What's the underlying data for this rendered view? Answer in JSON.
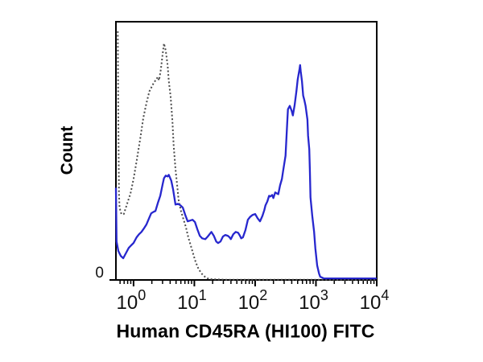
{
  "chart_data": {
    "type": "line",
    "subtype": "flow-cytometry-histogram-overlay",
    "title": "",
    "xlabel": "Human CD45RA (HI100) FITC",
    "ylabel": "Count",
    "x_scale": "log10",
    "x_range_log": [
      -0.29,
      4
    ],
    "grid": false,
    "legend": false,
    "colors": {
      "sample": "#2727ce",
      "control": "#4b4b4b",
      "frame": "#000000",
      "text": "#111111"
    },
    "x_ticks": [
      {
        "log": 0,
        "base": "10",
        "exp": "0"
      },
      {
        "log": 1,
        "base": "10",
        "exp": "1"
      },
      {
        "log": 2,
        "base": "10",
        "exp": "2"
      },
      {
        "log": 3,
        "base": "10",
        "exp": "3"
      },
      {
        "log": 4,
        "base": "10",
        "exp": "4"
      }
    ],
    "y_ticks": [
      {
        "frac": 0,
        "label": "0"
      }
    ],
    "series": [
      {
        "name": "control-dotted",
        "style": "dotted",
        "color_key": "control",
        "points": [
          [
            -0.26,
            0.963
          ],
          [
            -0.25,
            0.615
          ],
          [
            -0.24,
            0.335
          ],
          [
            -0.23,
            0.28
          ],
          [
            -0.2,
            0.255
          ],
          [
            -0.16,
            0.255
          ],
          [
            -0.11,
            0.292
          ],
          [
            -0.05,
            0.335
          ],
          [
            0.0,
            0.391
          ],
          [
            0.05,
            0.46
          ],
          [
            0.11,
            0.547
          ],
          [
            0.16,
            0.627
          ],
          [
            0.21,
            0.683
          ],
          [
            0.26,
            0.73
          ],
          [
            0.32,
            0.758
          ],
          [
            0.37,
            0.776
          ],
          [
            0.4,
            0.786
          ],
          [
            0.42,
            0.773
          ],
          [
            0.45,
            0.817
          ],
          [
            0.48,
            0.879
          ],
          [
            0.5,
            0.916
          ],
          [
            0.53,
            0.888
          ],
          [
            0.56,
            0.832
          ],
          [
            0.58,
            0.77
          ],
          [
            0.61,
            0.708
          ],
          [
            0.64,
            0.615
          ],
          [
            0.66,
            0.522
          ],
          [
            0.69,
            0.429
          ],
          [
            0.72,
            0.36
          ],
          [
            0.74,
            0.311
          ],
          [
            0.78,
            0.267
          ],
          [
            0.82,
            0.236
          ],
          [
            0.86,
            0.205
          ],
          [
            0.9,
            0.165
          ],
          [
            0.94,
            0.134
          ],
          [
            0.98,
            0.102
          ],
          [
            1.02,
            0.071
          ],
          [
            1.06,
            0.047
          ],
          [
            1.1,
            0.031
          ],
          [
            1.14,
            0.019
          ],
          [
            1.19,
            0.009
          ],
          [
            1.25,
            0.003
          ],
          [
            1.51,
            0.001
          ],
          [
            2.04,
            0.001
          ],
          [
            3.1,
            0.001
          ],
          [
            4.0,
            0.001
          ]
        ]
      },
      {
        "name": "sample-solid",
        "style": "solid",
        "color_key": "sample",
        "points": [
          [
            -0.29,
            0.357
          ],
          [
            -0.28,
            0.149
          ],
          [
            -0.25,
            0.112
          ],
          [
            -0.21,
            0.093
          ],
          [
            -0.17,
            0.084
          ],
          [
            -0.12,
            0.106
          ],
          [
            -0.08,
            0.124
          ],
          [
            -0.04,
            0.134
          ],
          [
            0.0,
            0.143
          ],
          [
            0.05,
            0.165
          ],
          [
            0.09,
            0.177
          ],
          [
            0.13,
            0.186
          ],
          [
            0.17,
            0.199
          ],
          [
            0.21,
            0.214
          ],
          [
            0.25,
            0.236
          ],
          [
            0.29,
            0.258
          ],
          [
            0.33,
            0.264
          ],
          [
            0.36,
            0.267
          ],
          [
            0.4,
            0.298
          ],
          [
            0.44,
            0.326
          ],
          [
            0.48,
            0.373
          ],
          [
            0.5,
            0.394
          ],
          [
            0.53,
            0.404
          ],
          [
            0.56,
            0.401
          ],
          [
            0.58,
            0.407
          ],
          [
            0.62,
            0.385
          ],
          [
            0.65,
            0.351
          ],
          [
            0.69,
            0.292
          ],
          [
            0.73,
            0.295
          ],
          [
            0.77,
            0.289
          ],
          [
            0.81,
            0.28
          ],
          [
            0.85,
            0.252
          ],
          [
            0.89,
            0.227
          ],
          [
            0.93,
            0.23
          ],
          [
            0.97,
            0.233
          ],
          [
            1.01,
            0.224
          ],
          [
            1.05,
            0.196
          ],
          [
            1.09,
            0.171
          ],
          [
            1.13,
            0.161
          ],
          [
            1.18,
            0.158
          ],
          [
            1.22,
            0.168
          ],
          [
            1.26,
            0.18
          ],
          [
            1.28,
            0.186
          ],
          [
            1.32,
            0.171
          ],
          [
            1.36,
            0.149
          ],
          [
            1.39,
            0.143
          ],
          [
            1.43,
            0.149
          ],
          [
            1.47,
            0.168
          ],
          [
            1.51,
            0.174
          ],
          [
            1.55,
            0.171
          ],
          [
            1.58,
            0.165
          ],
          [
            1.6,
            0.158
          ],
          [
            1.64,
            0.177
          ],
          [
            1.68,
            0.186
          ],
          [
            1.72,
            0.183
          ],
          [
            1.75,
            0.171
          ],
          [
            1.77,
            0.161
          ],
          [
            1.8,
            0.165
          ],
          [
            1.84,
            0.193
          ],
          [
            1.88,
            0.233
          ],
          [
            1.92,
            0.245
          ],
          [
            1.96,
            0.252
          ],
          [
            2.0,
            0.255
          ],
          [
            2.04,
            0.239
          ],
          [
            2.08,
            0.227
          ],
          [
            2.12,
            0.248
          ],
          [
            2.15,
            0.27
          ],
          [
            2.17,
            0.289
          ],
          [
            2.2,
            0.304
          ],
          [
            2.23,
            0.326
          ],
          [
            2.25,
            0.323
          ],
          [
            2.28,
            0.329
          ],
          [
            2.3,
            0.317
          ],
          [
            2.33,
            0.339
          ],
          [
            2.36,
            0.335
          ],
          [
            2.38,
            0.332
          ],
          [
            2.41,
            0.366
          ],
          [
            2.44,
            0.391
          ],
          [
            2.46,
            0.422
          ],
          [
            2.5,
            0.481
          ],
          [
            2.53,
            0.621
          ],
          [
            2.54,
            0.661
          ],
          [
            2.57,
            0.674
          ],
          [
            2.6,
            0.655
          ],
          [
            2.62,
            0.637
          ],
          [
            2.65,
            0.677
          ],
          [
            2.68,
            0.733
          ],
          [
            2.7,
            0.776
          ],
          [
            2.73,
            0.817
          ],
          [
            2.74,
            0.832
          ],
          [
            2.75,
            0.807
          ],
          [
            2.77,
            0.77
          ],
          [
            2.79,
            0.714
          ],
          [
            2.81,
            0.696
          ],
          [
            2.83,
            0.674
          ],
          [
            2.86,
            0.621
          ],
          [
            2.87,
            0.559
          ],
          [
            2.89,
            0.506
          ],
          [
            2.9,
            0.429
          ],
          [
            2.91,
            0.32
          ],
          [
            2.94,
            0.248
          ],
          [
            2.97,
            0.186
          ],
          [
            2.99,
            0.124
          ],
          [
            3.02,
            0.056
          ],
          [
            3.05,
            0.025
          ],
          [
            3.07,
            0.012
          ],
          [
            3.13,
            0.006
          ],
          [
            3.23,
            0.006
          ],
          [
            3.63,
            0.006
          ],
          [
            4.0,
            0.006
          ]
        ]
      }
    ]
  }
}
